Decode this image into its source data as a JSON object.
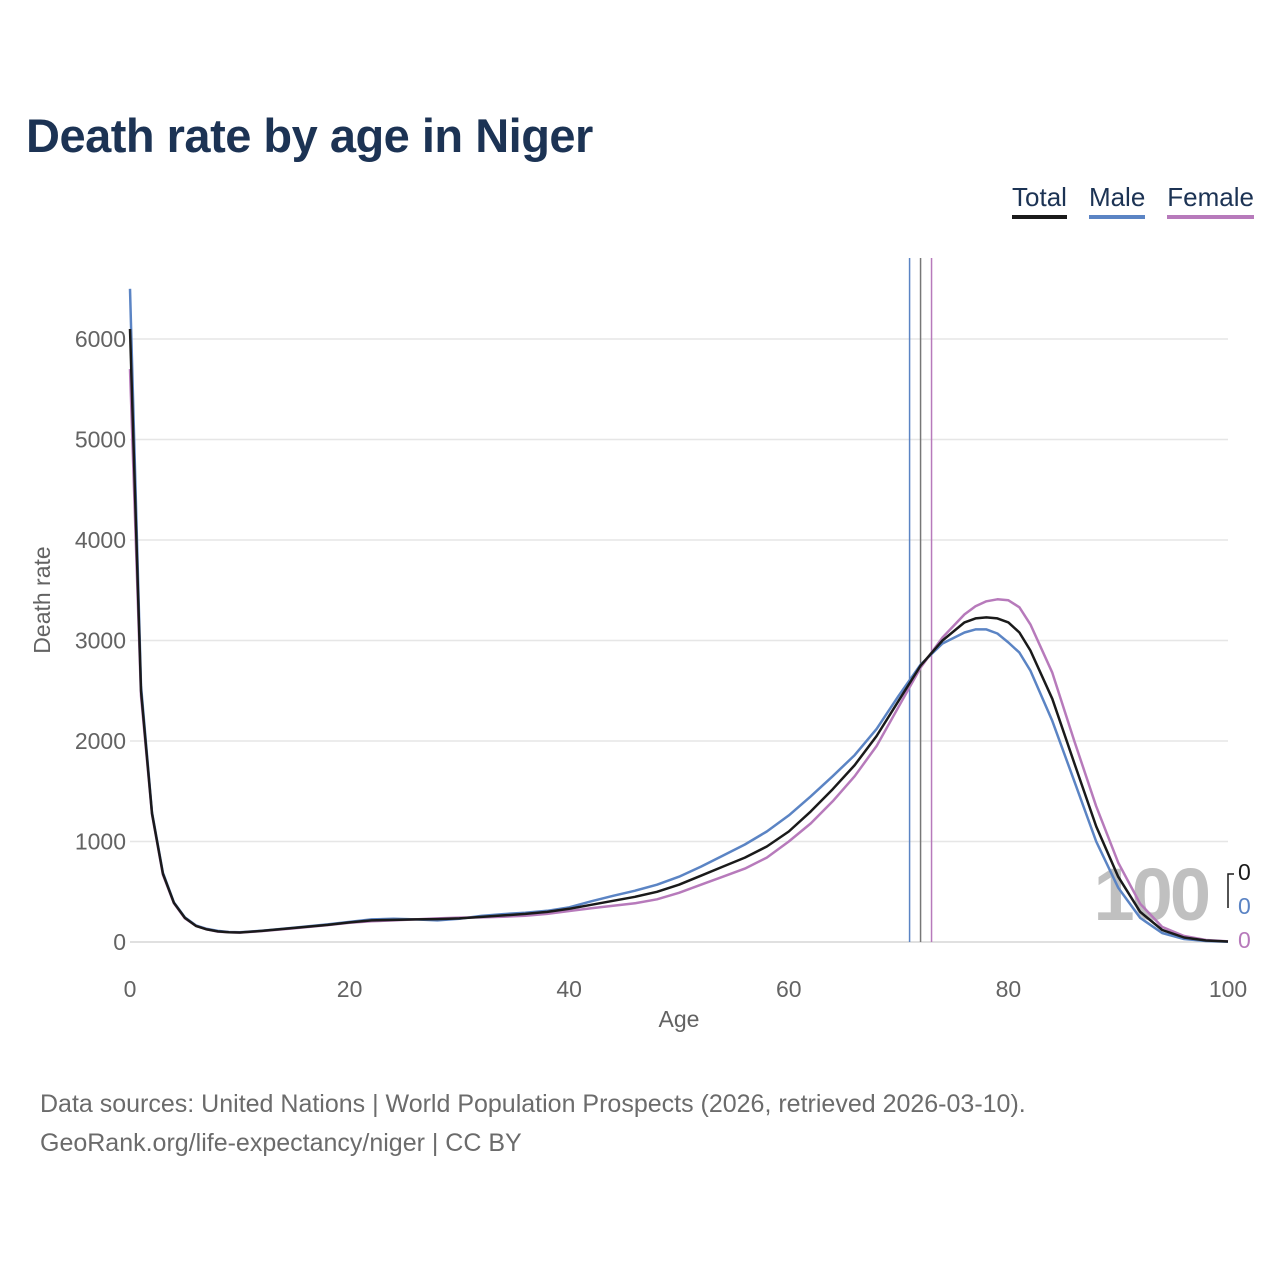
{
  "title": "Death rate by age in Niger",
  "legend": {
    "total": "Total",
    "male": "Male",
    "female": "Female"
  },
  "source": {
    "line1": "Data sources: United Nations | World Population Prospects (2026, retrieved 2026-03-10).",
    "line2": "GeoRank.org/life-expectancy/niger | CC BY"
  },
  "year_watermark": "100",
  "hover_values": {
    "total": "0",
    "male": "0",
    "female": "0"
  },
  "colors": {
    "total": "#1a1a1a",
    "male": "#5b84c4",
    "female": "#b77abb",
    "title": "#1c3354",
    "grid": "#e6e6e6"
  },
  "chart_data": {
    "type": "line",
    "title": "Death rate by age in Niger",
    "xlabel": "Age",
    "ylabel": "Death rate",
    "xlim": [
      0,
      100
    ],
    "ylim": [
      0,
      6600
    ],
    "xticks": [
      0,
      20,
      40,
      60,
      80,
      100
    ],
    "yticks": [
      0,
      1000,
      2000,
      3000,
      4000,
      5000,
      6000
    ],
    "grid": true,
    "legend_position": "top-right",
    "life_expectancy_markers": {
      "male": 71,
      "total": 72,
      "female": 73
    },
    "x": [
      0,
      1,
      2,
      3,
      4,
      5,
      6,
      7,
      8,
      9,
      10,
      12,
      15,
      18,
      20,
      22,
      24,
      26,
      28,
      30,
      32,
      34,
      36,
      38,
      40,
      42,
      44,
      46,
      48,
      50,
      52,
      54,
      56,
      58,
      60,
      62,
      64,
      66,
      68,
      70,
      72,
      74,
      76,
      77,
      78,
      79,
      80,
      81,
      82,
      84,
      86,
      88,
      90,
      92,
      94,
      96,
      98,
      100
    ],
    "series": [
      {
        "name": "Total",
        "values": [
          6100,
          2500,
          1280,
          680,
          390,
          240,
          160,
          125,
          105,
          98,
          95,
          110,
          140,
          170,
          195,
          215,
          220,
          225,
          228,
          235,
          250,
          265,
          280,
          300,
          330,
          370,
          410,
          450,
          500,
          570,
          660,
          750,
          840,
          950,
          1100,
          1300,
          1520,
          1760,
          2050,
          2400,
          2750,
          3000,
          3180,
          3220,
          3230,
          3220,
          3180,
          3080,
          2900,
          2420,
          1780,
          1150,
          650,
          300,
          120,
          45,
          15,
          5
        ]
      },
      {
        "name": "Male",
        "values": [
          6500,
          2550,
          1290,
          690,
          395,
          245,
          165,
          130,
          110,
          100,
          97,
          112,
          143,
          175,
          200,
          225,
          232,
          225,
          215,
          232,
          260,
          278,
          292,
          310,
          345,
          405,
          460,
          510,
          570,
          650,
          750,
          860,
          970,
          1100,
          1260,
          1450,
          1650,
          1860,
          2120,
          2450,
          2760,
          2970,
          3080,
          3110,
          3110,
          3070,
          2980,
          2880,
          2700,
          2200,
          1600,
          1000,
          540,
          240,
          90,
          30,
          10,
          3
        ]
      },
      {
        "name": "Female",
        "values": [
          5700,
          2450,
          1270,
          670,
          385,
          235,
          160,
          125,
          103,
          97,
          94,
          108,
          137,
          168,
          192,
          207,
          215,
          225,
          235,
          243,
          245,
          252,
          262,
          280,
          308,
          335,
          360,
          385,
          425,
          490,
          570,
          650,
          730,
          840,
          1000,
          1180,
          1400,
          1650,
          1950,
          2340,
          2730,
          3030,
          3260,
          3340,
          3390,
          3410,
          3400,
          3330,
          3160,
          2680,
          2000,
          1350,
          790,
          380,
          150,
          60,
          20,
          6
        ]
      }
    ]
  }
}
